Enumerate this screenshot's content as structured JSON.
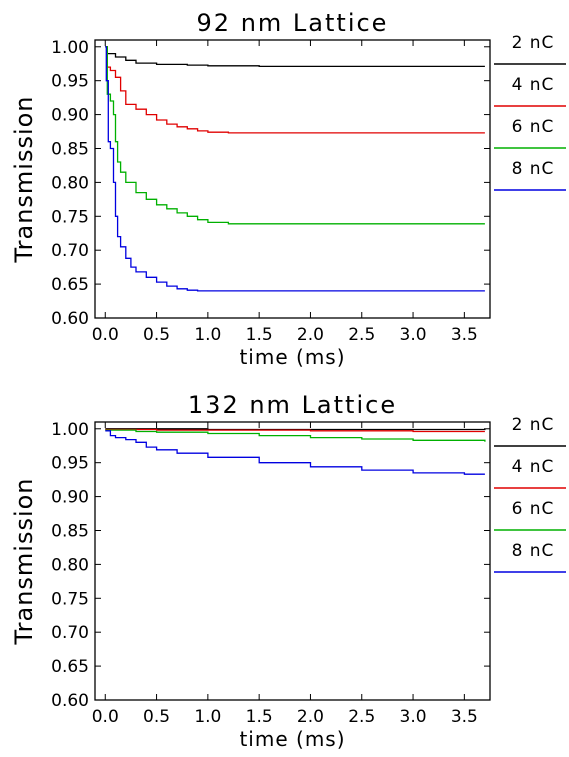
{
  "chart_data": [
    {
      "type": "line",
      "title": "92 nm Lattice",
      "xlabel": "time (ms)",
      "ylabel": "Transmission",
      "xlim": [
        -0.1,
        3.75
      ],
      "ylim": [
        0.6,
        1.01
      ],
      "xticks": [
        "0.0",
        "0.5",
        "1.0",
        "1.5",
        "2.0",
        "2.5",
        "3.0",
        "3.5"
      ],
      "yticks": [
        "0.60",
        "0.65",
        "0.70",
        "0.75",
        "0.80",
        "0.85",
        "0.90",
        "0.95",
        "1.00"
      ],
      "legend_position": "right",
      "series": [
        {
          "name": "2 nC",
          "color": "#000000",
          "x": [
            0.0,
            0.02,
            0.1,
            0.2,
            0.3,
            0.5,
            0.8,
            1.0,
            1.5,
            2.0,
            3.7
          ],
          "y": [
            1.0,
            0.99,
            0.985,
            0.98,
            0.976,
            0.974,
            0.973,
            0.972,
            0.971,
            0.971,
            0.971
          ]
        },
        {
          "name": "4 nC",
          "color": "#e00000",
          "x": [
            0.0,
            0.02,
            0.05,
            0.1,
            0.15,
            0.2,
            0.3,
            0.4,
            0.5,
            0.6,
            0.7,
            0.8,
            0.9,
            1.0,
            1.2,
            1.5,
            2.0,
            3.7
          ],
          "y": [
            1.0,
            0.97,
            0.965,
            0.955,
            0.935,
            0.915,
            0.908,
            0.9,
            0.892,
            0.886,
            0.882,
            0.879,
            0.876,
            0.874,
            0.873,
            0.873,
            0.873,
            0.873
          ]
        },
        {
          "name": "6 nC",
          "color": "#00b000",
          "x": [
            0.0,
            0.02,
            0.05,
            0.08,
            0.1,
            0.12,
            0.15,
            0.2,
            0.3,
            0.4,
            0.5,
            0.6,
            0.7,
            0.8,
            0.9,
            1.0,
            1.2,
            1.5,
            2.0,
            3.7
          ],
          "y": [
            1.0,
            0.93,
            0.92,
            0.9,
            0.86,
            0.83,
            0.815,
            0.8,
            0.785,
            0.775,
            0.767,
            0.761,
            0.755,
            0.75,
            0.745,
            0.741,
            0.739,
            0.739,
            0.739,
            0.739
          ]
        },
        {
          "name": "8 nC",
          "color": "#0000e0",
          "x": [
            0.0,
            0.01,
            0.03,
            0.05,
            0.08,
            0.1,
            0.12,
            0.15,
            0.2,
            0.25,
            0.3,
            0.4,
            0.5,
            0.6,
            0.7,
            0.8,
            0.9,
            1.0,
            1.2,
            1.5,
            2.0,
            3.7
          ],
          "y": [
            1.0,
            0.95,
            0.86,
            0.85,
            0.8,
            0.75,
            0.72,
            0.705,
            0.688,
            0.675,
            0.668,
            0.66,
            0.653,
            0.647,
            0.643,
            0.641,
            0.64,
            0.64,
            0.64,
            0.64,
            0.64,
            0.64
          ]
        }
      ]
    },
    {
      "type": "line",
      "title": "132 nm Lattice",
      "xlabel": "time (ms)",
      "ylabel": "Transmission",
      "xlim": [
        -0.1,
        3.75
      ],
      "ylim": [
        0.6,
        1.01
      ],
      "xticks": [
        "0.0",
        "0.5",
        "1.0",
        "1.5",
        "2.0",
        "2.5",
        "3.0",
        "3.5"
      ],
      "yticks": [
        "0.60",
        "0.65",
        "0.70",
        "0.75",
        "0.80",
        "0.85",
        "0.90",
        "0.95",
        "1.00"
      ],
      "legend_position": "right",
      "series": [
        {
          "name": "2 nC",
          "color": "#000000",
          "x": [
            0.0,
            0.5,
            1.0,
            2.0,
            3.7
          ],
          "y": [
            1.0,
            1.0,
            0.999,
            0.999,
            0.998
          ]
        },
        {
          "name": "4 nC",
          "color": "#e00000",
          "x": [
            0.0,
            0.5,
            1.0,
            2.0,
            3.0,
            3.7
          ],
          "y": [
            0.999,
            0.998,
            0.998,
            0.997,
            0.996,
            0.996
          ]
        },
        {
          "name": "6 nC",
          "color": "#00b000",
          "x": [
            0.0,
            0.3,
            0.5,
            1.0,
            1.5,
            2.0,
            2.5,
            3.0,
            3.7
          ],
          "y": [
            0.998,
            0.996,
            0.995,
            0.993,
            0.99,
            0.987,
            0.985,
            0.983,
            0.981
          ]
        },
        {
          "name": "8 nC",
          "color": "#0000e0",
          "x": [
            0.0,
            0.05,
            0.1,
            0.2,
            0.3,
            0.4,
            0.5,
            0.7,
            1.0,
            1.5,
            2.0,
            2.5,
            3.0,
            3.5,
            3.7
          ],
          "y": [
            0.997,
            0.99,
            0.987,
            0.984,
            0.98,
            0.973,
            0.969,
            0.964,
            0.958,
            0.95,
            0.944,
            0.939,
            0.935,
            0.933,
            0.933
          ]
        }
      ]
    }
  ]
}
